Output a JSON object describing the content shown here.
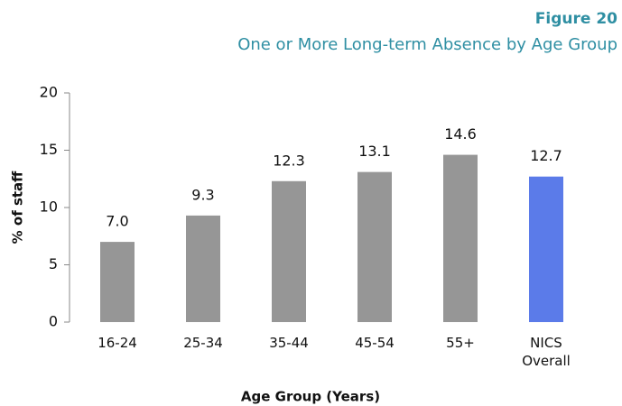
{
  "chart_data": {
    "type": "bar",
    "title": "Figure 20",
    "subtitle": "One or More Long-term Absence by Age Group",
    "x_label": "Age Group (Years)",
    "y_label": "% of staff",
    "categories": [
      "16-24",
      "25-34",
      "35-44",
      "45-54",
      "55+",
      "NICS Overall"
    ],
    "values": [
      7.0,
      9.3,
      12.3,
      13.1,
      14.6,
      12.7
    ],
    "value_labels": [
      "7.0",
      "9.3",
      "12.3",
      "13.1",
      "14.6",
      "12.7"
    ],
    "colors": [
      "#969696",
      "#969696",
      "#969696",
      "#969696",
      "#969696",
      "#5b7be9"
    ],
    "ylim": [
      0,
      20
    ],
    "yticks": [
      0,
      5,
      10,
      15,
      20
    ],
    "grid": false
  }
}
